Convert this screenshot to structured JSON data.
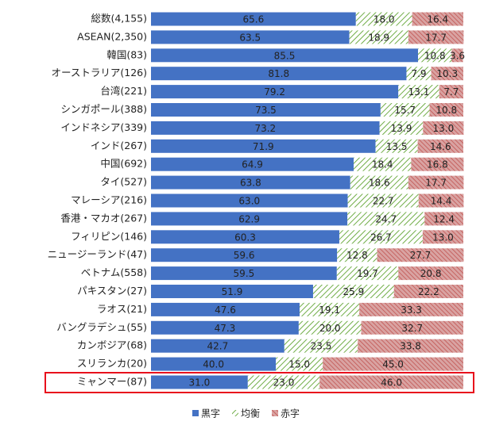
{
  "chart_data": {
    "type": "stacked-bar-horizontal",
    "categories": [
      "総数(4,155)",
      "ASEAN(2,350)",
      "韓国(83)",
      "オーストラリア(126)",
      "台湾(221)",
      "シンガポール(388)",
      "インドネシア(339)",
      "インド(267)",
      "中国(692)",
      "タイ(527)",
      "マレーシア(216)",
      "香港・マカオ(267)",
      "フィリピン(146)",
      "ニュージーランド(47)",
      "ベトナム(558)",
      "パキスタン(27)",
      "ラオス(21)",
      "バングラデシュ(55)",
      "カンボジア(68)",
      "スリランカ(20)",
      "ミャンマー(87)"
    ],
    "xlim": [
      0,
      100
    ],
    "series": [
      {
        "name": "黒字",
        "color": "#4472c4",
        "values": [
          65.6,
          63.5,
          85.5,
          81.8,
          79.2,
          73.5,
          73.2,
          71.9,
          64.9,
          63.8,
          63.0,
          62.9,
          60.3,
          59.6,
          59.5,
          51.9,
          47.6,
          47.3,
          42.7,
          40.0,
          31.0
        ],
        "value_labels": [
          "65.6",
          "63.5",
          "85.5",
          "81.8",
          "79.2",
          "73.5",
          "73.2",
          "71.9",
          "64.9",
          "63.8",
          "63.0",
          "62.9",
          "60.3",
          "59.6",
          "59.5",
          "51.9",
          "47.6",
          "47.3",
          "42.7",
          "40.0",
          "31.0"
        ]
      },
      {
        "name": "均衡",
        "color": "#70ad47",
        "values": [
          18.0,
          18.9,
          10.8,
          7.9,
          13.1,
          15.7,
          13.9,
          13.5,
          18.4,
          18.6,
          22.7,
          24.7,
          26.7,
          12.8,
          19.7,
          25.9,
          19.1,
          20.0,
          23.5,
          15.0,
          23.0
        ],
        "value_labels": [
          "18.0",
          "18.9",
          "10.8",
          "7.9",
          "13.1",
          "15.7",
          "13.9",
          "13.5",
          "18.4",
          "18.6",
          "22.7",
          "24.7",
          "26.7",
          "12.8",
          "19.7",
          "25.9",
          "19.1",
          "20.0",
          "23.5",
          "15.0",
          "23.0"
        ]
      },
      {
        "name": "赤字",
        "color": "#c0504d",
        "values": [
          16.4,
          17.7,
          3.6,
          10.3,
          7.7,
          10.8,
          13.0,
          14.6,
          16.8,
          17.7,
          14.4,
          12.4,
          13.0,
          27.7,
          20.8,
          22.2,
          33.3,
          32.7,
          33.8,
          45.0,
          46.0
        ],
        "value_labels": [
          "16.4",
          "17.7",
          "3.6",
          "10.3",
          "7.7",
          "10.8",
          "13.0",
          "14.6",
          "16.8",
          "17.7",
          "14.4",
          "12.4",
          "13.0",
          "27.7",
          "20.8",
          "22.2",
          "33.3",
          "32.7",
          "33.8",
          "45.0",
          "46.0"
        ]
      }
    ]
  }
}
